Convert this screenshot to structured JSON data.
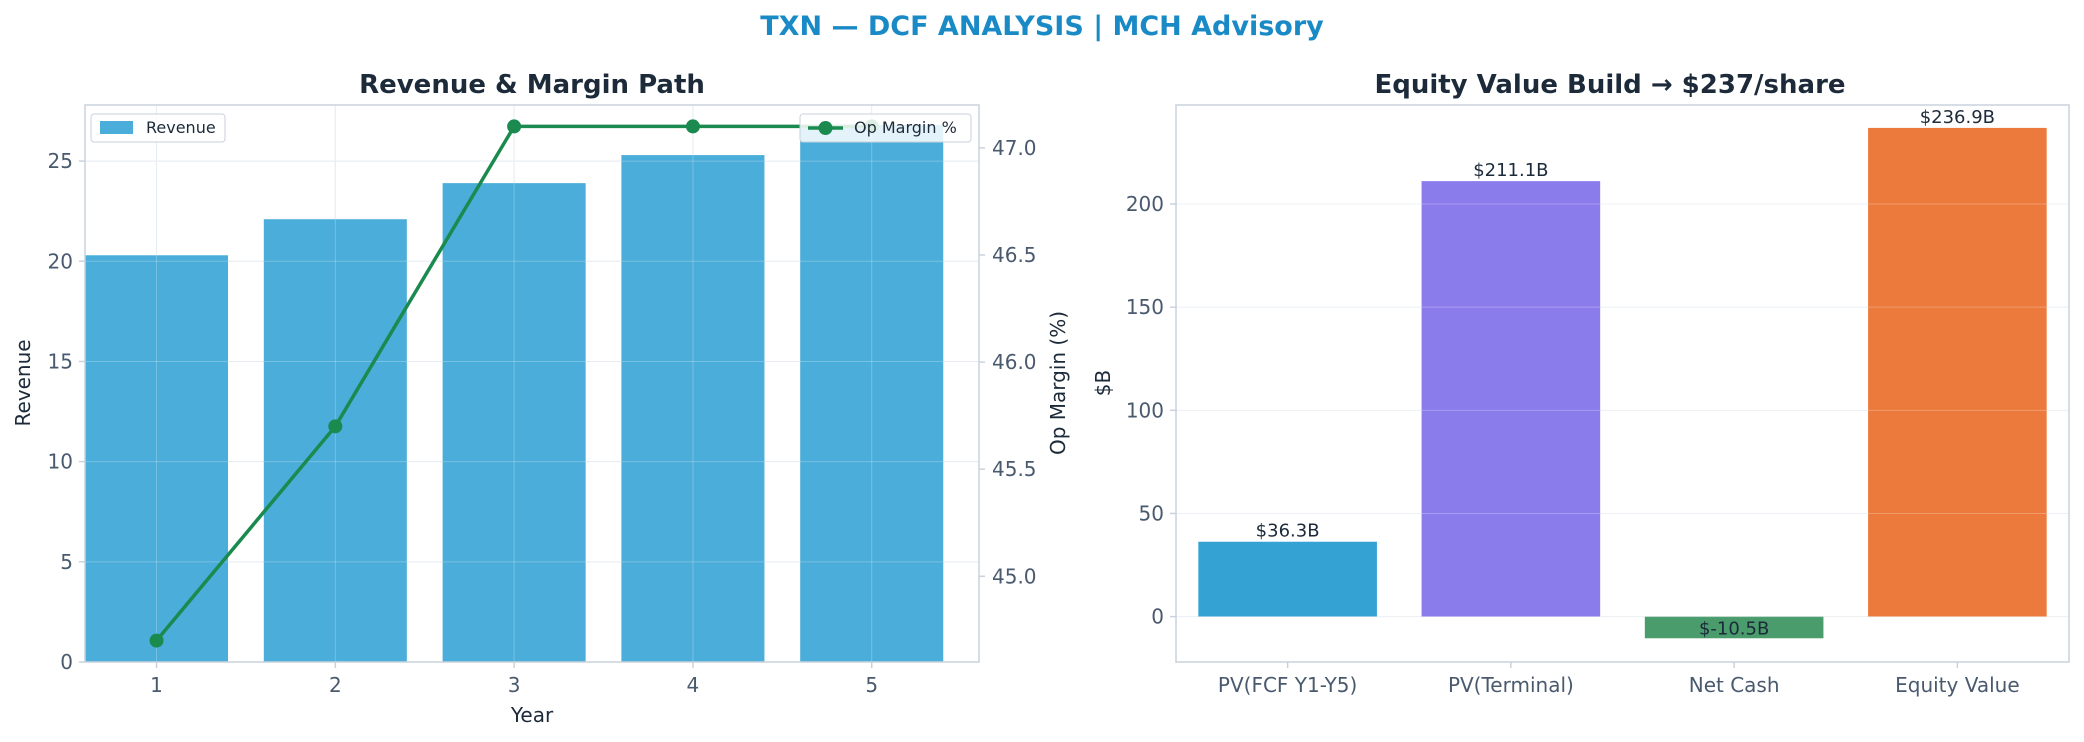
{
  "suptitle": "TXN — DCF ANALYSIS | MCH Advisory",
  "colors": {
    "revenue_bar": "#4badd9",
    "margin_line": "#1a8a4e",
    "pv_fcf": "#35a2d4",
    "pv_terminal": "#8b7cec",
    "net_cash": "#4a9c6c",
    "equity_value": "#ec7a3c"
  },
  "chart_data": [
    {
      "type": "bar",
      "title": "Revenue & Margin Path",
      "xlabel": "Year",
      "ylabel": "Revenue",
      "y2label": "Op Margin (%)",
      "categories": [
        "1",
        "2",
        "3",
        "4",
        "5"
      ],
      "series": [
        {
          "name": "Revenue",
          "type": "bar",
          "axis": "left",
          "values": [
            20.3,
            22.1,
            23.9,
            25.3,
            26.8
          ]
        },
        {
          "name": "Op Margin %",
          "type": "line",
          "axis": "right",
          "values": [
            44.7,
            45.7,
            47.1,
            47.1,
            47.1
          ]
        }
      ],
      "ylim": [
        0,
        27.8
      ],
      "yticks": [
        "0",
        "5",
        "10",
        "15",
        "20",
        "25"
      ],
      "y2lim": [
        44.6,
        47.2
      ],
      "y2ticks": [
        "45.0",
        "45.5",
        "46.0",
        "46.5",
        "47.0"
      ],
      "grid": true,
      "legend": [
        "upper-left",
        "upper-right"
      ]
    },
    {
      "type": "bar",
      "title": "Equity Value Build → $237/share",
      "xlabel": "",
      "ylabel": "$B",
      "categories": [
        "PV(FCF Y1-Y5)",
        "PV(Terminal)",
        "Net Cash",
        "Equity Value"
      ],
      "values": [
        36.3,
        211.1,
        -10.5,
        236.9
      ],
      "data_labels": [
        "$36.3B",
        "$211.1B",
        "$-10.5B",
        "$236.9B"
      ],
      "ylim": [
        -22,
        248
      ],
      "yticks": [
        "0",
        "50",
        "100",
        "150",
        "200"
      ],
      "grid": true
    }
  ]
}
